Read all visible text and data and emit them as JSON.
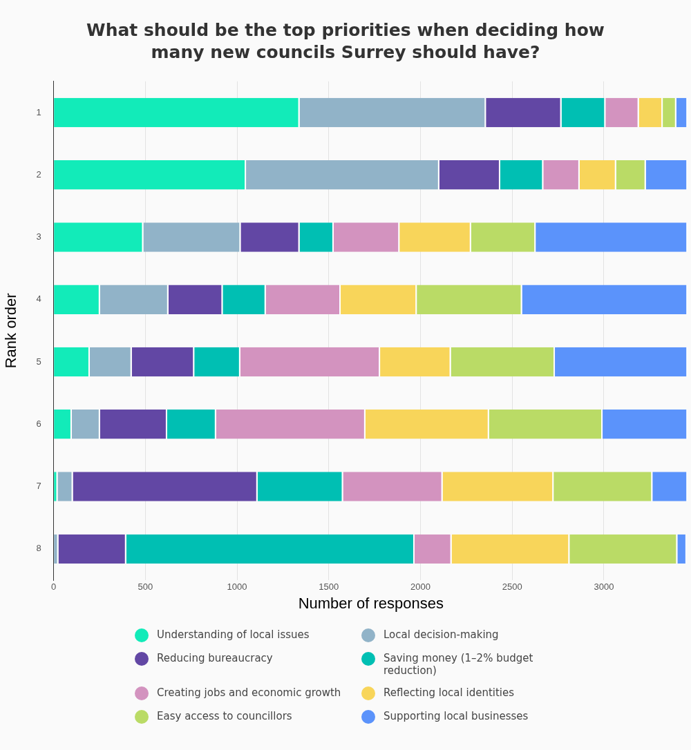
{
  "chart_data": {
    "type": "bar",
    "orientation": "horizontal",
    "stacked": true,
    "title": "What should be the top priorities when deciding how many new councils Surrey should have?",
    "xlabel": "Number of responses",
    "ylabel": "Rank order",
    "categories": [
      "1",
      "2",
      "3",
      "4",
      "5",
      "6",
      "7",
      "8"
    ],
    "xlim": [
      0,
      3460
    ],
    "xticks": [
      0,
      500,
      1000,
      1500,
      2000,
      2500,
      3000
    ],
    "grid": "x",
    "legend": "bottom",
    "series": [
      {
        "name": "Understanding of local issues",
        "color": "#12ebb9",
        "values": [
          1341,
          1049,
          489,
          253,
          197,
          99,
          22,
          null
        ]
      },
      {
        "name": "Local decision-making",
        "color": "#91b3c8",
        "values": [
          1016,
          1054,
          531,
          373,
          229,
          154,
          83,
          26
        ]
      },
      {
        "name": "Reducing bureaucracy",
        "color": "#6247a4",
        "values": [
          412,
          332,
          321,
          296,
          341,
          366,
          1007,
          370
        ]
      },
      {
        "name": "Saving money (1–2% budget reduction)",
        "color": "#00bfb3",
        "values": [
          240,
          235,
          186,
          235,
          251,
          267,
          466,
          1572
        ]
      },
      {
        "name": "Creating jobs and economic growth",
        "color": "#d393bf",
        "values": [
          182,
          198,
          359,
          408,
          762,
          814,
          543,
          202
        ]
      },
      {
        "name": "Reflecting local identities",
        "color": "#f8d55a",
        "values": [
          130,
          199,
          390,
          415,
          386,
          674,
          605,
          643
        ]
      },
      {
        "name": "Easy access to councillors",
        "color": "#badb66",
        "values": [
          74,
          162,
          352,
          574,
          567,
          619,
          539,
          588
        ]
      },
      {
        "name": "Supporting local businesses",
        "color": "#5b93fb",
        "values": [
          62,
          228,
          829,
          903,
          724,
          464,
          192,
          51
        ]
      }
    ]
  }
}
